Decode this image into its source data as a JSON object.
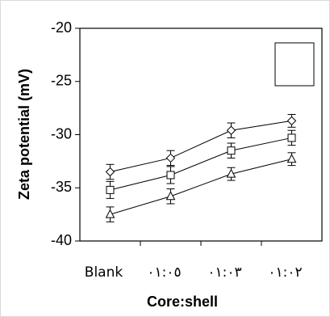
{
  "chart_data": {
    "type": "line",
    "xlabel": "Core:shell",
    "ylabel": "Zeta potential (mV)",
    "categories": [
      "Blank",
      "٠١:٠٥",
      "٠١:٠٣",
      "٠١:٠٢"
    ],
    "ylim": [
      -40,
      -20
    ],
    "yticks": [
      "-20",
      "-25",
      "-30",
      "-35",
      "-40"
    ],
    "legend": {
      "placement": "top-right",
      "entries": []
    },
    "grid": false,
    "series": [
      {
        "marker": "diamond",
        "values": [
          -33.5,
          -32.2,
          -29.6,
          -28.7
        ],
        "errors": [
          0.7,
          0.7,
          0.7,
          0.6
        ]
      },
      {
        "marker": "square",
        "values": [
          -35.2,
          -33.8,
          -31.5,
          -30.3
        ],
        "errors": [
          0.8,
          0.8,
          0.7,
          0.7
        ]
      },
      {
        "marker": "triangle",
        "values": [
          -37.5,
          -35.8,
          -33.7,
          -32.3
        ],
        "errors": [
          0.7,
          0.7,
          0.6,
          0.6
        ]
      }
    ]
  }
}
